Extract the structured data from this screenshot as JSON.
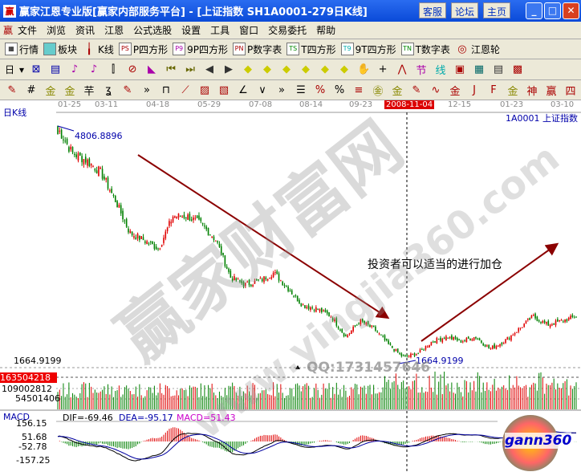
{
  "window": {
    "title": "赢家江恩专业版[赢家内部服务平台] - [上证指数   SH1A0001-279日K线]",
    "buttons": [
      "客服",
      "论坛",
      "主页"
    ]
  },
  "menu": [
    "文件",
    "浏览",
    "资讯",
    "江恩",
    "公式选股",
    "设置",
    "工具",
    "窗口",
    "交易委托",
    "帮助"
  ],
  "toolbar1": [
    {
      "icon": "grid-icon",
      "label": "行情"
    },
    {
      "icon": "blocks-icon",
      "label": "板块"
    },
    {
      "icon": "candle-icon",
      "label": "K线"
    },
    {
      "icon": "PS",
      "label": "P四方形"
    },
    {
      "icon": "P9",
      "label": "9P四方形"
    },
    {
      "icon": "PN",
      "label": "P数字表"
    },
    {
      "icon": "TS",
      "label": "T四方形"
    },
    {
      "icon": "T9",
      "label": "9T四方形"
    },
    {
      "icon": "TN",
      "label": "T数字表"
    },
    {
      "icon": "wheel-icon",
      "label": "江恩轮"
    }
  ],
  "toolbar2": {
    "period": "日"
  },
  "chart": {
    "panel_label": "日K线",
    "stock_label": "1A0001  上证指数",
    "dates": [
      "01-25",
      "03-11",
      "04-18",
      "05-29",
      "07-08",
      "08-14",
      "09-23",
      "2008-11-04",
      "12-15",
      "01-23",
      "03-10"
    ],
    "high_label": "4806.8896",
    "low_label": "1664.9199",
    "low_axis": "1664.9199",
    "annotation": "投资者可以适当的进行加仓",
    "watermark": "赢家财富网",
    "watermark_url": "www.yingjia360.com",
    "qq": "QQ:1731457646",
    "price_range": [
      1664.9199,
      4806.8896
    ],
    "closes": [
      4780,
      4450,
      4350,
      4190,
      3820,
      3390,
      3290,
      3180,
      3610,
      3610,
      3500,
      3290,
      2800,
      2700,
      2750,
      2860,
      2650,
      2430,
      2380,
      2280,
      2010,
      2220,
      2110,
      1900,
      1740,
      1790,
      1950,
      2010,
      1950,
      2010,
      1850,
      1950,
      2110,
      2280,
      2170,
      2220,
      2280
    ],
    "volume": {
      "labels": [
        "163504218",
        "109002812",
        "54501406"
      ]
    },
    "macd": {
      "title": "MACD",
      "dif": "DIF=-69.46",
      "dea": "DEA=-95.17",
      "macd": "MACD=51.43",
      "ticks": [
        "156.15",
        "51.68",
        "-52.78",
        "-157.25"
      ]
    },
    "logo": "gann360",
    "colors": {
      "up": "#e00000",
      "down": "#008000",
      "dea": "#0000a0",
      "dif": "#000000",
      "arrow": "#8b0000"
    }
  }
}
